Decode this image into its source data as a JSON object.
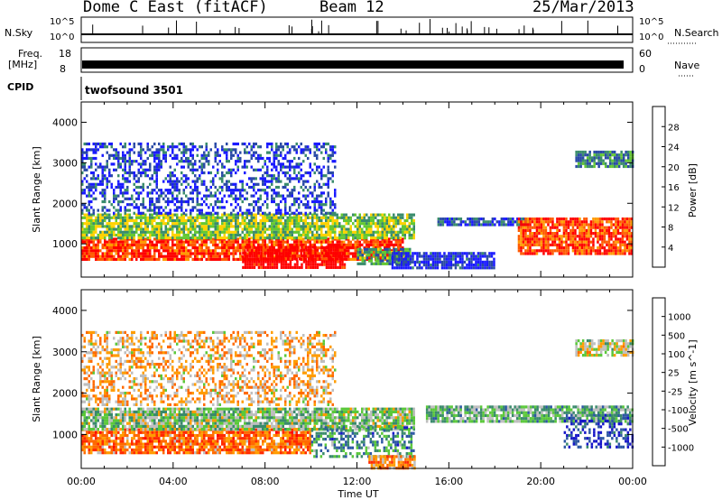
{
  "header": {
    "title": "Dome C East (fitACF)",
    "beam": "Beam 12",
    "date": "25/Mar/2013"
  },
  "params": {
    "nsky_label": "N.Sky",
    "nsky_ticks": [
      "10^5",
      "10^0"
    ],
    "nsearch_label": "N.Search",
    "nsearch_ticks": [
      "10^5",
      "10^0"
    ],
    "freq_label": "Freq.",
    "freq_unit": "[MHz]",
    "freq_ticks": [
      "18",
      "8"
    ],
    "nave_label": "Nave",
    "nave_ticks": [
      "60",
      "0"
    ],
    "cpid_label": "CPID",
    "cpid_value": "twofsound 3501"
  },
  "axes": {
    "xlabel": "Time UT",
    "ylabel": "Slant Range [km]",
    "xticks": [
      "00:00",
      "04:00",
      "08:00",
      "12:00",
      "16:00",
      "20:00",
      "00:00"
    ],
    "yticks": [
      "1000",
      "2000",
      "3000",
      "4000"
    ]
  },
  "colors": {
    "power": [
      "#1a1aff",
      "#2a4aa6",
      "#3a8c6c",
      "#64c832",
      "#ffd200",
      "#ff9b00",
      "#ff5a00",
      "#ff0000"
    ],
    "velocity": [
      "#1616c8",
      "#2c56a4",
      "#3a8a6c",
      "#5ac83a",
      "#bebebe",
      "#ff9c00",
      "#ff6a00",
      "#ff2a00",
      "#ff0000"
    ]
  },
  "chart_data": [
    {
      "type": "heatmap",
      "panel": "power",
      "xlabel": "Time UT",
      "ylabel": "Slant Range [km]",
      "colorbar_label": "Power [dB]",
      "colorbar_ticks": [
        "4",
        "8",
        "12",
        "16",
        "20",
        "24",
        "28"
      ],
      "xlim": [
        "00:00",
        "24:00"
      ],
      "ylim": [
        180,
        4500
      ],
      "regions": [
        {
          "t": [
            0,
            14
          ],
          "r": [
            620,
            1150
          ],
          "level": 0.88
        },
        {
          "t": [
            7,
            11.5
          ],
          "r": [
            450,
            950
          ],
          "level": 1.0
        },
        {
          "t": [
            0,
            14.5
          ],
          "r": [
            1150,
            1750
          ],
          "level": 0.45
        },
        {
          "t": [
            0,
            11
          ],
          "r": [
            1750,
            3500
          ],
          "level": 0.15
        },
        {
          "t": [
            12,
            14.3
          ],
          "r": [
            500,
            900
          ],
          "level": 0.35
        },
        {
          "t": [
            15.5,
            19.5
          ],
          "r": [
            1450,
            1650
          ],
          "level": 0.2
        },
        {
          "t": [
            19,
            24
          ],
          "r": [
            750,
            1650
          ],
          "level": 0.85
        },
        {
          "t": [
            21.5,
            24
          ],
          "r": [
            2900,
            3300
          ],
          "level": 0.3
        },
        {
          "t": [
            13.5,
            18
          ],
          "r": [
            400,
            800
          ],
          "level": 0.1
        }
      ]
    },
    {
      "type": "heatmap",
      "panel": "velocity",
      "xlabel": "Time UT",
      "ylabel": "Slant Range [km]",
      "colorbar_label": "Velocity [m s^-1]",
      "colorbar_ticks": [
        "1000",
        "500",
        "100",
        "25",
        "-25",
        "-100",
        "-500",
        "-1000"
      ],
      "xlim": [
        "00:00",
        "24:00"
      ],
      "ylim": [
        180,
        4500
      ],
      "regions": [
        {
          "t": [
            0,
            10
          ],
          "r": [
            550,
            1150
          ],
          "level": 0.72
        },
        {
          "t": [
            0,
            14.5
          ],
          "r": [
            1100,
            1650
          ],
          "level": 0.42
        },
        {
          "t": [
            10,
            14.5
          ],
          "r": [
            500,
            1200
          ],
          "level": 0.28
        },
        {
          "t": [
            0,
            11
          ],
          "r": [
            1700,
            3500
          ],
          "level": 0.6
        },
        {
          "t": [
            12.5,
            14.5
          ],
          "r": [
            200,
            500
          ],
          "level": 0.65
        },
        {
          "t": [
            15,
            24
          ],
          "r": [
            1300,
            1700
          ],
          "level": 0.38
        },
        {
          "t": [
            21,
            24
          ],
          "r": [
            700,
            1500
          ],
          "level": 0.14
        },
        {
          "t": [
            21.5,
            24
          ],
          "r": [
            2900,
            3300
          ],
          "level": 0.5
        }
      ]
    }
  ]
}
